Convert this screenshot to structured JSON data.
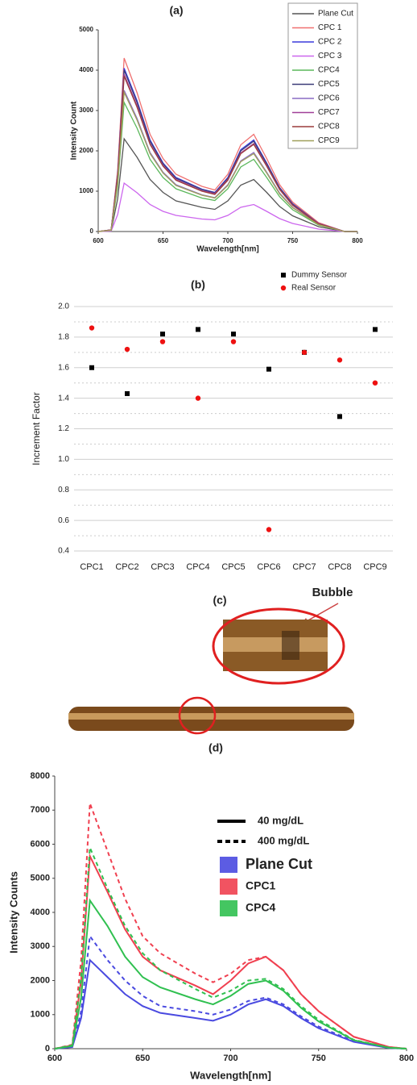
{
  "chart_data": [
    {
      "type": "line",
      "title": "(a)",
      "xlabel": "Wavelength[nm]",
      "ylabel": "Intensity Count",
      "xlim": [
        600,
        800
      ],
      "xticks": [
        600,
        650,
        700,
        750,
        800
      ],
      "ylim": [
        0,
        5000
      ],
      "yticks": [
        0,
        1000,
        2000,
        3000,
        4000,
        5000
      ],
      "legend": "upper right",
      "x": [
        600,
        610,
        615,
        620,
        630,
        640,
        650,
        660,
        680,
        690,
        700,
        710,
        720,
        730,
        740,
        750,
        770,
        790,
        800
      ],
      "series": [
        {
          "name": "Plane Cut",
          "color": "#555555",
          "values": [
            0,
            20,
            810,
            2300,
            1840,
            1290,
            970,
            760,
            600,
            550,
            760,
            1150,
            1290,
            970,
            620,
            390,
            120,
            0,
            0
          ]
        },
        {
          "name": "CPC 1",
          "color": "#f07070",
          "values": [
            0,
            40,
            1510,
            4300,
            3440,
            2410,
            1810,
            1420,
            1120,
            1030,
            1420,
            2150,
            2410,
            1810,
            1160,
            730,
            220,
            0,
            0
          ]
        },
        {
          "name": "CPC 2",
          "color": "#3a3adc",
          "values": [
            0,
            40,
            1420,
            4050,
            3240,
            2270,
            1700,
            1340,
            1050,
            970,
            1340,
            2030,
            2270,
            1700,
            1090,
            690,
            200,
            0,
            0
          ]
        },
        {
          "name": "CPC 3",
          "color": "#cc66ee",
          "values": [
            0,
            10,
            420,
            1200,
            960,
            670,
            500,
            400,
            310,
            290,
            400,
            600,
            670,
            500,
            320,
            200,
            60,
            0,
            0
          ]
        },
        {
          "name": "CPC4",
          "color": "#5cb85c",
          "values": [
            0,
            30,
            1120,
            3200,
            2560,
            1790,
            1340,
            1060,
            830,
            770,
            1060,
            1600,
            1790,
            1340,
            860,
            540,
            160,
            0,
            0
          ]
        },
        {
          "name": "CPC5",
          "color": "#3c3c78",
          "values": [
            0,
            40,
            1400,
            4000,
            3200,
            2240,
            1680,
            1320,
            1040,
            960,
            1320,
            2000,
            2240,
            1680,
            1080,
            680,
            200,
            0,
            0
          ]
        },
        {
          "name": "CPC6",
          "color": "#8a6cc4",
          "values": [
            0,
            40,
            1230,
            3500,
            2800,
            1960,
            1470,
            1160,
            910,
            840,
            1160,
            1750,
            1960,
            1470,
            950,
            600,
            180,
            0,
            0
          ]
        },
        {
          "name": "CPC7",
          "color": "#a04098",
          "values": [
            0,
            40,
            1370,
            3900,
            3120,
            2180,
            1640,
            1290,
            1010,
            940,
            1290,
            1950,
            2180,
            1640,
            1050,
            660,
            200,
            0,
            0
          ]
        },
        {
          "name": "CPC8",
          "color": "#9c3c3c",
          "values": [
            0,
            40,
            1350,
            3850,
            3080,
            2160,
            1620,
            1270,
            1000,
            920,
            1270,
            1930,
            2160,
            1620,
            1040,
            650,
            190,
            0,
            0
          ]
        },
        {
          "name": "CPC9",
          "color": "#a0a05a",
          "values": [
            0,
            30,
            1210,
            3450,
            2760,
            1930,
            1450,
            1140,
            900,
            830,
            1140,
            1730,
            1930,
            1450,
            930,
            590,
            170,
            0,
            0
          ]
        }
      ]
    },
    {
      "type": "scatter",
      "title": "(b)",
      "ylabel": "Increment Factor",
      "categories": [
        "CPC1",
        "CPC2",
        "CPC3",
        "CPC4",
        "CPC5",
        "CPC6",
        "CPC7",
        "CPC8",
        "CPC9"
      ],
      "ylim": [
        0.4,
        2.0
      ],
      "yticks": [
        0.4,
        0.6,
        0.8,
        {
          "value": 1.0,
          "label": "1.0"
        },
        1.2,
        1.4,
        1.6,
        1.8,
        {
          "value": 2.0,
          "label": "2.0"
        }
      ],
      "minor_yticks": [
        0.5,
        0.7,
        0.9,
        1.1,
        1.3,
        1.5,
        1.7,
        1.9
      ],
      "grid": true,
      "legend": "upper right",
      "series": [
        {
          "name": "Dummy Sensor",
          "color": "#000000",
          "marker": "square",
          "values": [
            1.6,
            1.43,
            1.82,
            1.85,
            1.82,
            1.59,
            1.7,
            1.28,
            1.85
          ]
        },
        {
          "name": "Real Sensor",
          "color": "#ee1111",
          "marker": "circle",
          "values": [
            1.86,
            1.72,
            1.77,
            1.4,
            1.77,
            0.54,
            1.7,
            1.65,
            1.5
          ]
        }
      ]
    },
    {
      "type": "line",
      "title": "(d)",
      "xlabel": "Wavelength[nm]",
      "ylabel": "Intensity Counts",
      "xlim": [
        600,
        800
      ],
      "xticks": [
        600,
        650,
        700,
        750,
        800
      ],
      "ylim": [
        0,
        8000
      ],
      "yticks": [
        0,
        1000,
        2000,
        3000,
        4000,
        5000,
        6000,
        7000,
        8000
      ],
      "styles": [
        {
          "label": "40 mg/dL",
          "dash": false
        },
        {
          "label": "400 mg/dL",
          "dash": true
        }
      ],
      "x": [
        600,
        610,
        615,
        620,
        630,
        640,
        650,
        660,
        680,
        690,
        700,
        710,
        720,
        730,
        740,
        750,
        770,
        790,
        800
      ],
      "series": [
        {
          "name": "Plane Cut",
          "color": "#4a4ae0",
          "lines": [
            {
              "values": [
                0,
                50,
                900,
                2600,
                2100,
                1600,
                1250,
                1050,
                900,
                820,
                1000,
                1300,
                1450,
                1250,
                900,
                600,
                200,
                20,
                0
              ]
            },
            {
              "values": [
                0,
                60,
                1100,
                3300,
                2600,
                2000,
                1550,
                1250,
                1100,
                1000,
                1150,
                1400,
                1500,
                1300,
                950,
                650,
                220,
                20,
                0
              ]
            }
          ]
        },
        {
          "name": "CPC1",
          "color": "#f04050",
          "lines": [
            {
              "values": [
                0,
                100,
                2000,
                5650,
                4600,
                3500,
                2700,
                2300,
                1850,
                1600,
                2000,
                2500,
                2700,
                2300,
                1600,
                1100,
                350,
                50,
                0
              ]
            },
            {
              "values": [
                0,
                120,
                2600,
                7200,
                5800,
                4400,
                3300,
                2800,
                2200,
                1950,
                2200,
                2600,
                2700,
                2300,
                1600,
                1100,
                350,
                50,
                0
              ]
            }
          ]
        },
        {
          "name": "CPC4",
          "color": "#30c050",
          "lines": [
            {
              "values": [
                0,
                80,
                1500,
                4350,
                3600,
                2700,
                2100,
                1800,
                1450,
                1300,
                1550,
                1900,
                2000,
                1700,
                1200,
                800,
                250,
                30,
                0
              ]
            },
            {
              "values": [
                0,
                100,
                2100,
                5900,
                4700,
                3600,
                2800,
                2300,
                1750,
                1500,
                1700,
                2000,
                2050,
                1750,
                1250,
                850,
                260,
                30,
                0
              ]
            }
          ]
        }
      ]
    }
  ],
  "panel_c": {
    "title": "(c)",
    "annotation": "Bubble"
  }
}
